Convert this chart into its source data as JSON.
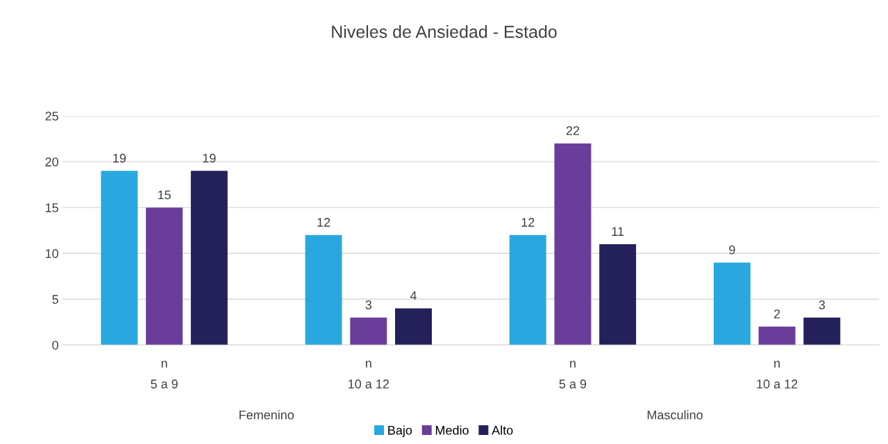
{
  "chart_data": {
    "type": "bar",
    "title": "Niveles de Ansiedad - Estado",
    "categories": [
      "n\n5 a 9",
      "n\n10 a 12",
      "n\n5 a 9",
      "n\n10 a 12"
    ],
    "series": [
      {
        "name": "Bajo",
        "color": "#29a8e0",
        "values": [
          19,
          12,
          12,
          9
        ]
      },
      {
        "name": "Medio",
        "color": "#6a3d9a",
        "values": [
          15,
          3,
          22,
          2
        ]
      },
      {
        "name": "Alto",
        "color": "#24205a",
        "values": [
          19,
          4,
          11,
          3
        ]
      }
    ],
    "annotations": [
      "Femenino",
      "Masculino"
    ],
    "ylim": [
      0,
      25
    ],
    "yticks": [
      0,
      5,
      10,
      15,
      20,
      25
    ],
    "grid": "y",
    "legend": "bottom",
    "data_labels": true
  }
}
